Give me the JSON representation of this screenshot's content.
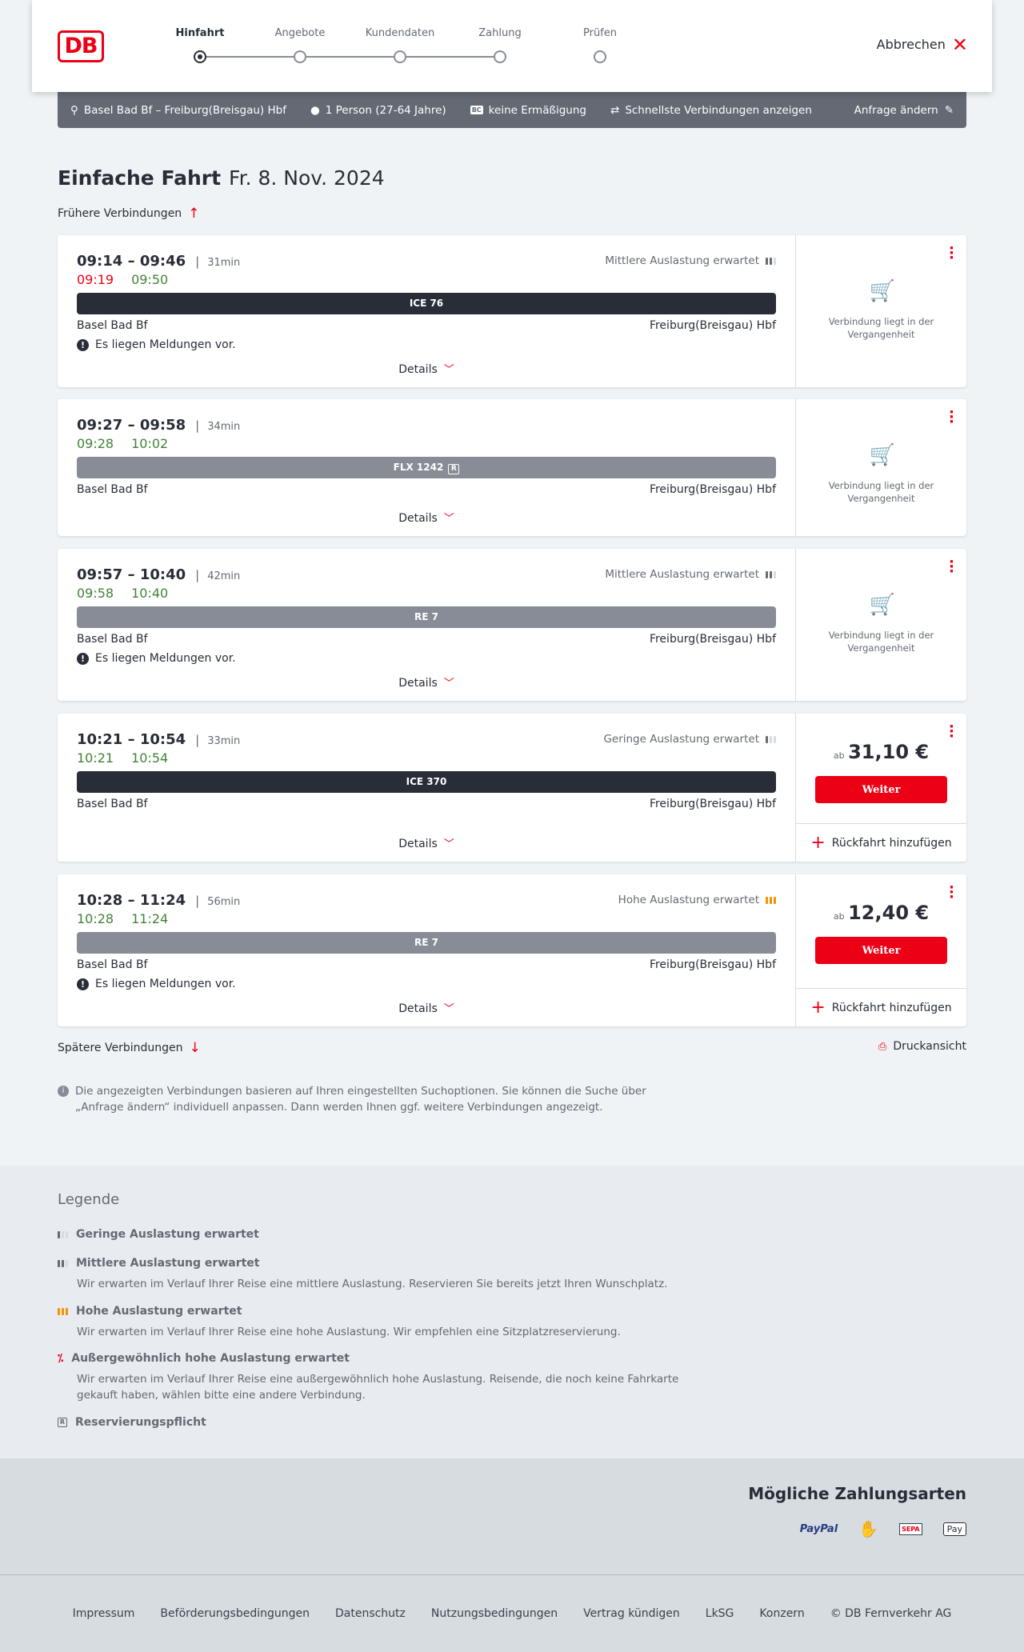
{
  "header": {
    "logo": "DB",
    "steps": [
      "Hinfahrt",
      "Angebote",
      "Kundendaten",
      "Zahlung",
      "Prüfen"
    ],
    "active_step": 0,
    "cancel": "Abbrechen"
  },
  "summary": {
    "route": "Basel Bad Bf – Freiburg(Breisgau) Hbf",
    "persons": "1 Person (27-64 Jahre)",
    "discount": "keine Ermäßigung",
    "fastest": "Schnellste Verbindungen anzeigen",
    "edit": "Anfrage ändern",
    "bc_badge": "BC"
  },
  "title": {
    "type": "Einfache Fahrt",
    "date": "Fr. 8. Nov. 2024"
  },
  "earlier": "Frühere Verbindungen",
  "later": "Spätere Verbindungen",
  "print": "Druckansicht",
  "details_label": "Details",
  "past_text": "Verbindung liegt in der Vergangenheit",
  "weiter": "Weiter",
  "return_label": "Rückfahrt hinzufügen",
  "price_prefix": "ab",
  "connections": [
    {
      "time": "09:14 – 09:46",
      "duration": "31min",
      "rt_dep": "09:19",
      "rt_arr": "09:50",
      "dep_late": true,
      "occupancy": "Mittlere Auslastung erwartet",
      "occ_level": 2,
      "train": "ICE 76",
      "from": "Basel Bad Bf",
      "to": "Freiburg(Breisgau) Hbf",
      "message": "Es liegen Meldungen vor.",
      "past": true
    },
    {
      "time": "09:27 – 09:58",
      "duration": "34min",
      "rt_dep": "09:28",
      "rt_arr": "10:02",
      "occupancy": "",
      "train": "FLX 1242",
      "reservation": "R",
      "from": "Basel Bad Bf",
      "to": "Freiburg(Breisgau) Hbf",
      "past": true
    },
    {
      "time": "09:57 – 10:40",
      "duration": "42min",
      "rt_dep": "09:58",
      "rt_arr": "10:40",
      "occupancy": "Mittlere Auslastung erwartet",
      "occ_level": 2,
      "train": "RE 7",
      "from": "Basel Bad Bf",
      "to": "Freiburg(Breisgau) Hbf",
      "message": "Es liegen Meldungen vor.",
      "past": true
    },
    {
      "time": "10:21 – 10:54",
      "duration": "33min",
      "rt_dep": "10:21",
      "rt_arr": "10:54",
      "occupancy": "Geringe Auslastung erwartet",
      "occ_level": 1,
      "train": "ICE 370",
      "from": "Basel Bad Bf",
      "to": "Freiburg(Breisgau) Hbf",
      "price": "31,10 €"
    },
    {
      "time": "10:28 – 11:24",
      "duration": "56min",
      "rt_dep": "10:28",
      "rt_arr": "11:24",
      "occupancy": "Hohe Auslastung erwartet",
      "occ_level": 3,
      "train": "RE 7",
      "from": "Basel Bad Bf",
      "to": "Freiburg(Breisgau) Hbf",
      "message": "Es liegen Meldungen vor.",
      "price": "12,40 €"
    }
  ],
  "info": "Die angezeigten Verbindungen basieren auf Ihren eingestellten Suchoptionen. Sie können die Suche über „Anfrage ändern“ individuell anpassen. Dann werden Ihnen ggf. weitere Verbindungen angezeigt.",
  "legend": {
    "title": "Legende",
    "items": [
      {
        "title": "Geringe Auslastung erwartet"
      },
      {
        "title": "Mittlere Auslastung erwartet",
        "desc": "Wir erwarten im Verlauf Ihrer Reise eine mittlere Auslastung. Reservieren Sie bereits jetzt Ihren Wunschplatz."
      },
      {
        "title": "Hohe Auslastung erwartet",
        "desc": "Wir erwarten im Verlauf Ihrer Reise eine hohe Auslastung. Wir empfehlen eine Sitzplatzreservierung."
      },
      {
        "title": "Außergewöhnlich hohe Auslastung erwartet",
        "desc": "Wir erwarten im Verlauf Ihrer Reise eine außergewöhnlich hohe Auslastung. Reisende, die noch keine Fahrkarte gekauft haben, wählen bitte eine andere Verbindung."
      },
      {
        "title": "Reservierungspflicht"
      }
    ]
  },
  "payment": {
    "title": "Mögliche Zahlungsarten",
    "methods": [
      "PayPal",
      "Kreditkarte",
      "SEPA",
      "Pay"
    ]
  },
  "footer": [
    "Impressum",
    "Beförderungsbedingungen",
    "Datenschutz",
    "Nutzungsbedingungen",
    "Vertrag kündigen",
    "LkSG",
    "Konzern",
    "© DB Fernverkehr AG"
  ],
  "colors": {
    "brand": "#ec0016",
    "late": "#ec0016",
    "ontime": "#408335",
    "high_occupancy": "#f39200",
    "summary_bar": "#646973"
  }
}
